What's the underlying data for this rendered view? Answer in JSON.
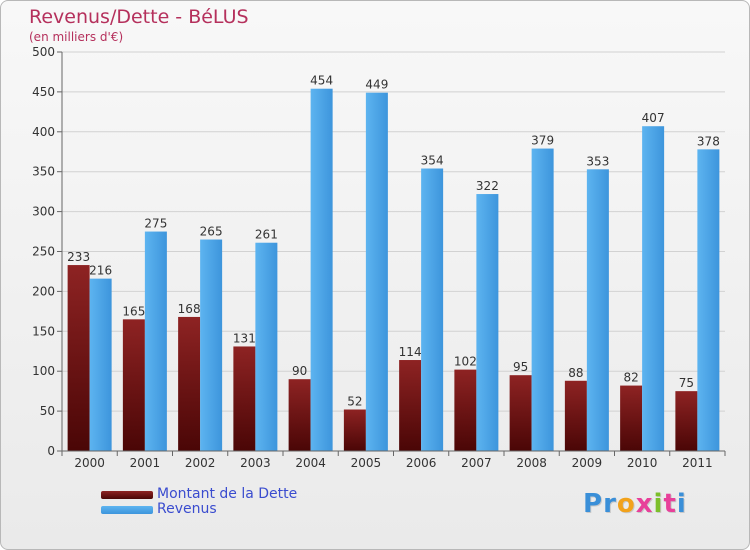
{
  "header": {
    "title": "Revenus/Dette - BéLUS",
    "subtitle": "(en milliers d'€)"
  },
  "legend": {
    "debt_label": "Montant de la Dette",
    "revenue_label": "Revenus"
  },
  "logo": {
    "text": "Proxiti",
    "letters": [
      {
        "char": "P",
        "color": "#3a8fd8"
      },
      {
        "char": "r",
        "color": "#3a8fd8"
      },
      {
        "char": "o",
        "color": "#f2a21b"
      },
      {
        "char": "x",
        "color": "#e8409a"
      },
      {
        "char": "i",
        "color": "#7cbf2a"
      },
      {
        "char": "t",
        "color": "#e8409a"
      },
      {
        "char": "i",
        "color": "#3a8fd8"
      }
    ]
  },
  "colors": {
    "debt": "#7a1a1a",
    "revenue": "#4da6e8",
    "title": "#b5305c",
    "legend_text": "#3a4ccf"
  },
  "chart_data": {
    "type": "bar",
    "title": "Revenus/Dette - BéLUS",
    "subtitle": "(en milliers d'€)",
    "xlabel": "",
    "ylabel": "",
    "ylim": [
      0,
      500
    ],
    "yticks": [
      0,
      50,
      100,
      150,
      200,
      250,
      300,
      350,
      400,
      450,
      500
    ],
    "grid": true,
    "categories": [
      "2000",
      "2001",
      "2002",
      "2003",
      "2004",
      "2005",
      "2006",
      "2007",
      "2008",
      "2009",
      "2010",
      "2011"
    ],
    "series": [
      {
        "name": "Montant de la Dette",
        "values": [
          233,
          165,
          168,
          131,
          90,
          52,
          114,
          102,
          95,
          88,
          82,
          75
        ]
      },
      {
        "name": "Revenus",
        "values": [
          216,
          275,
          265,
          261,
          454,
          449,
          354,
          322,
          379,
          353,
          407,
          378
        ]
      }
    ]
  }
}
